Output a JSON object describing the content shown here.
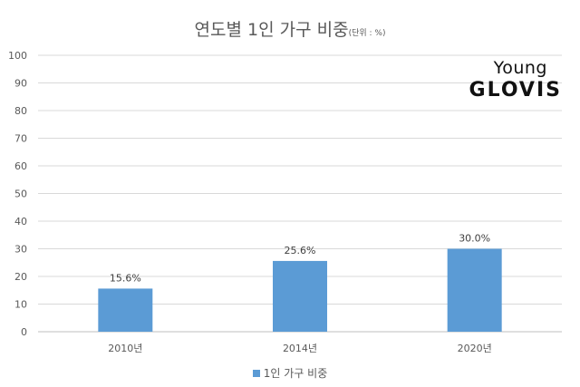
{
  "chart_data": {
    "type": "bar",
    "title": "연도별 1인 가구 비중",
    "unit": "(단위 : %)",
    "categories": [
      "2010년",
      "2014년",
      "2020년"
    ],
    "series": [
      {
        "name": "1인 가구 비중",
        "values": [
          15.6,
          25.6,
          30.0
        ],
        "labels": [
          "15.6%",
          "25.6%",
          "30.0%"
        ],
        "color": "#5b9bd5"
      }
    ],
    "yticks": [
      "0",
      "10",
      "20",
      "30",
      "40",
      "50",
      "60",
      "70",
      "80",
      "90",
      "100"
    ],
    "ylim": [
      0,
      100
    ],
    "grid": true,
    "legend": "bottom"
  },
  "brand": {
    "line1": "Young",
    "line2": "GLOVIS"
  }
}
